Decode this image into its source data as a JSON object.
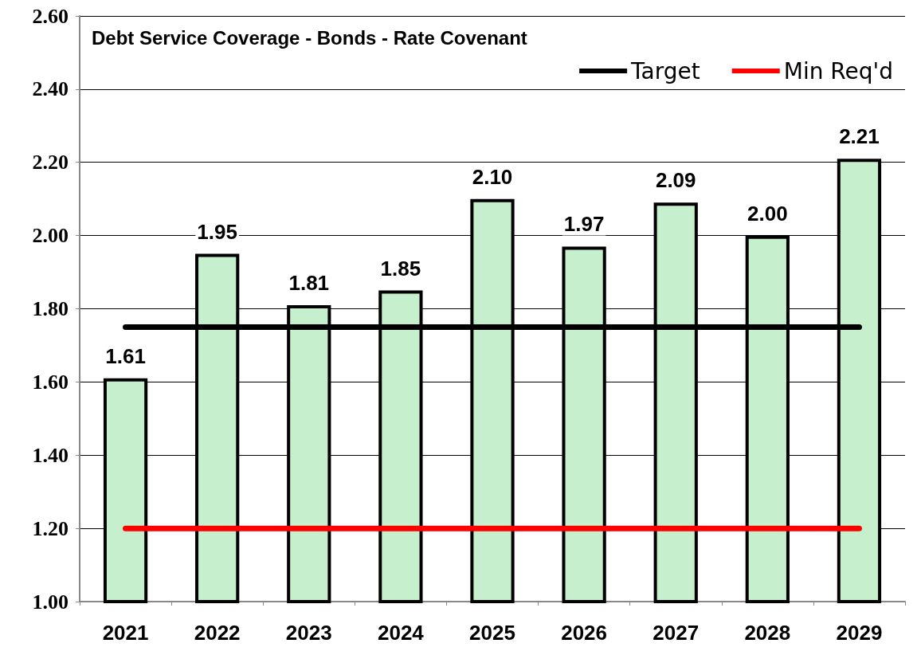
{
  "chart_data": {
    "type": "bar",
    "title": "Debt Service Coverage - Bonds - Rate Covenant",
    "categories": [
      "2021",
      "2022",
      "2023",
      "2024",
      "2025",
      "2026",
      "2027",
      "2028",
      "2029"
    ],
    "series": [
      {
        "color": "#c6efce",
        "values": [
          1.61,
          1.95,
          1.81,
          1.85,
          2.1,
          1.97,
          2.09,
          2.0,
          2.21
        ],
        "value_labels": [
          "1.61",
          "1.95",
          "1.81",
          "1.85",
          "2.10",
          "1.97",
          "2.09",
          "2.00",
          "2.21"
        ]
      },
      {
        "type": "line",
        "name": "Target",
        "color": "#000000",
        "values": [
          1.75,
          1.75,
          1.75,
          1.75,
          1.75,
          1.75,
          1.75,
          1.75,
          1.75
        ]
      },
      {
        "type": "line",
        "name": "Min Req'd",
        "color": "#ff0000",
        "values": [
          1.2,
          1.2,
          1.2,
          1.2,
          1.2,
          1.2,
          1.2,
          1.2,
          1.2
        ]
      }
    ],
    "ylim": [
      1.0,
      2.6
    ],
    "yticks": [
      {
        "value": 1.0,
        "label": "1.00"
      },
      {
        "value": 1.2,
        "label": "1.20"
      },
      {
        "value": 1.4,
        "label": "1.40"
      },
      {
        "value": 1.6,
        "label": "1.60"
      },
      {
        "value": 1.8,
        "label": "1.80"
      },
      {
        "value": 2.0,
        "label": "2.00"
      },
      {
        "value": 2.2,
        "label": "2.20"
      },
      {
        "value": 2.4,
        "label": "2.40"
      },
      {
        "value": 2.6,
        "label": "2.60"
      }
    ],
    "grid": "y",
    "legend": "top right",
    "marker": "none",
    "line_style": "solid"
  }
}
